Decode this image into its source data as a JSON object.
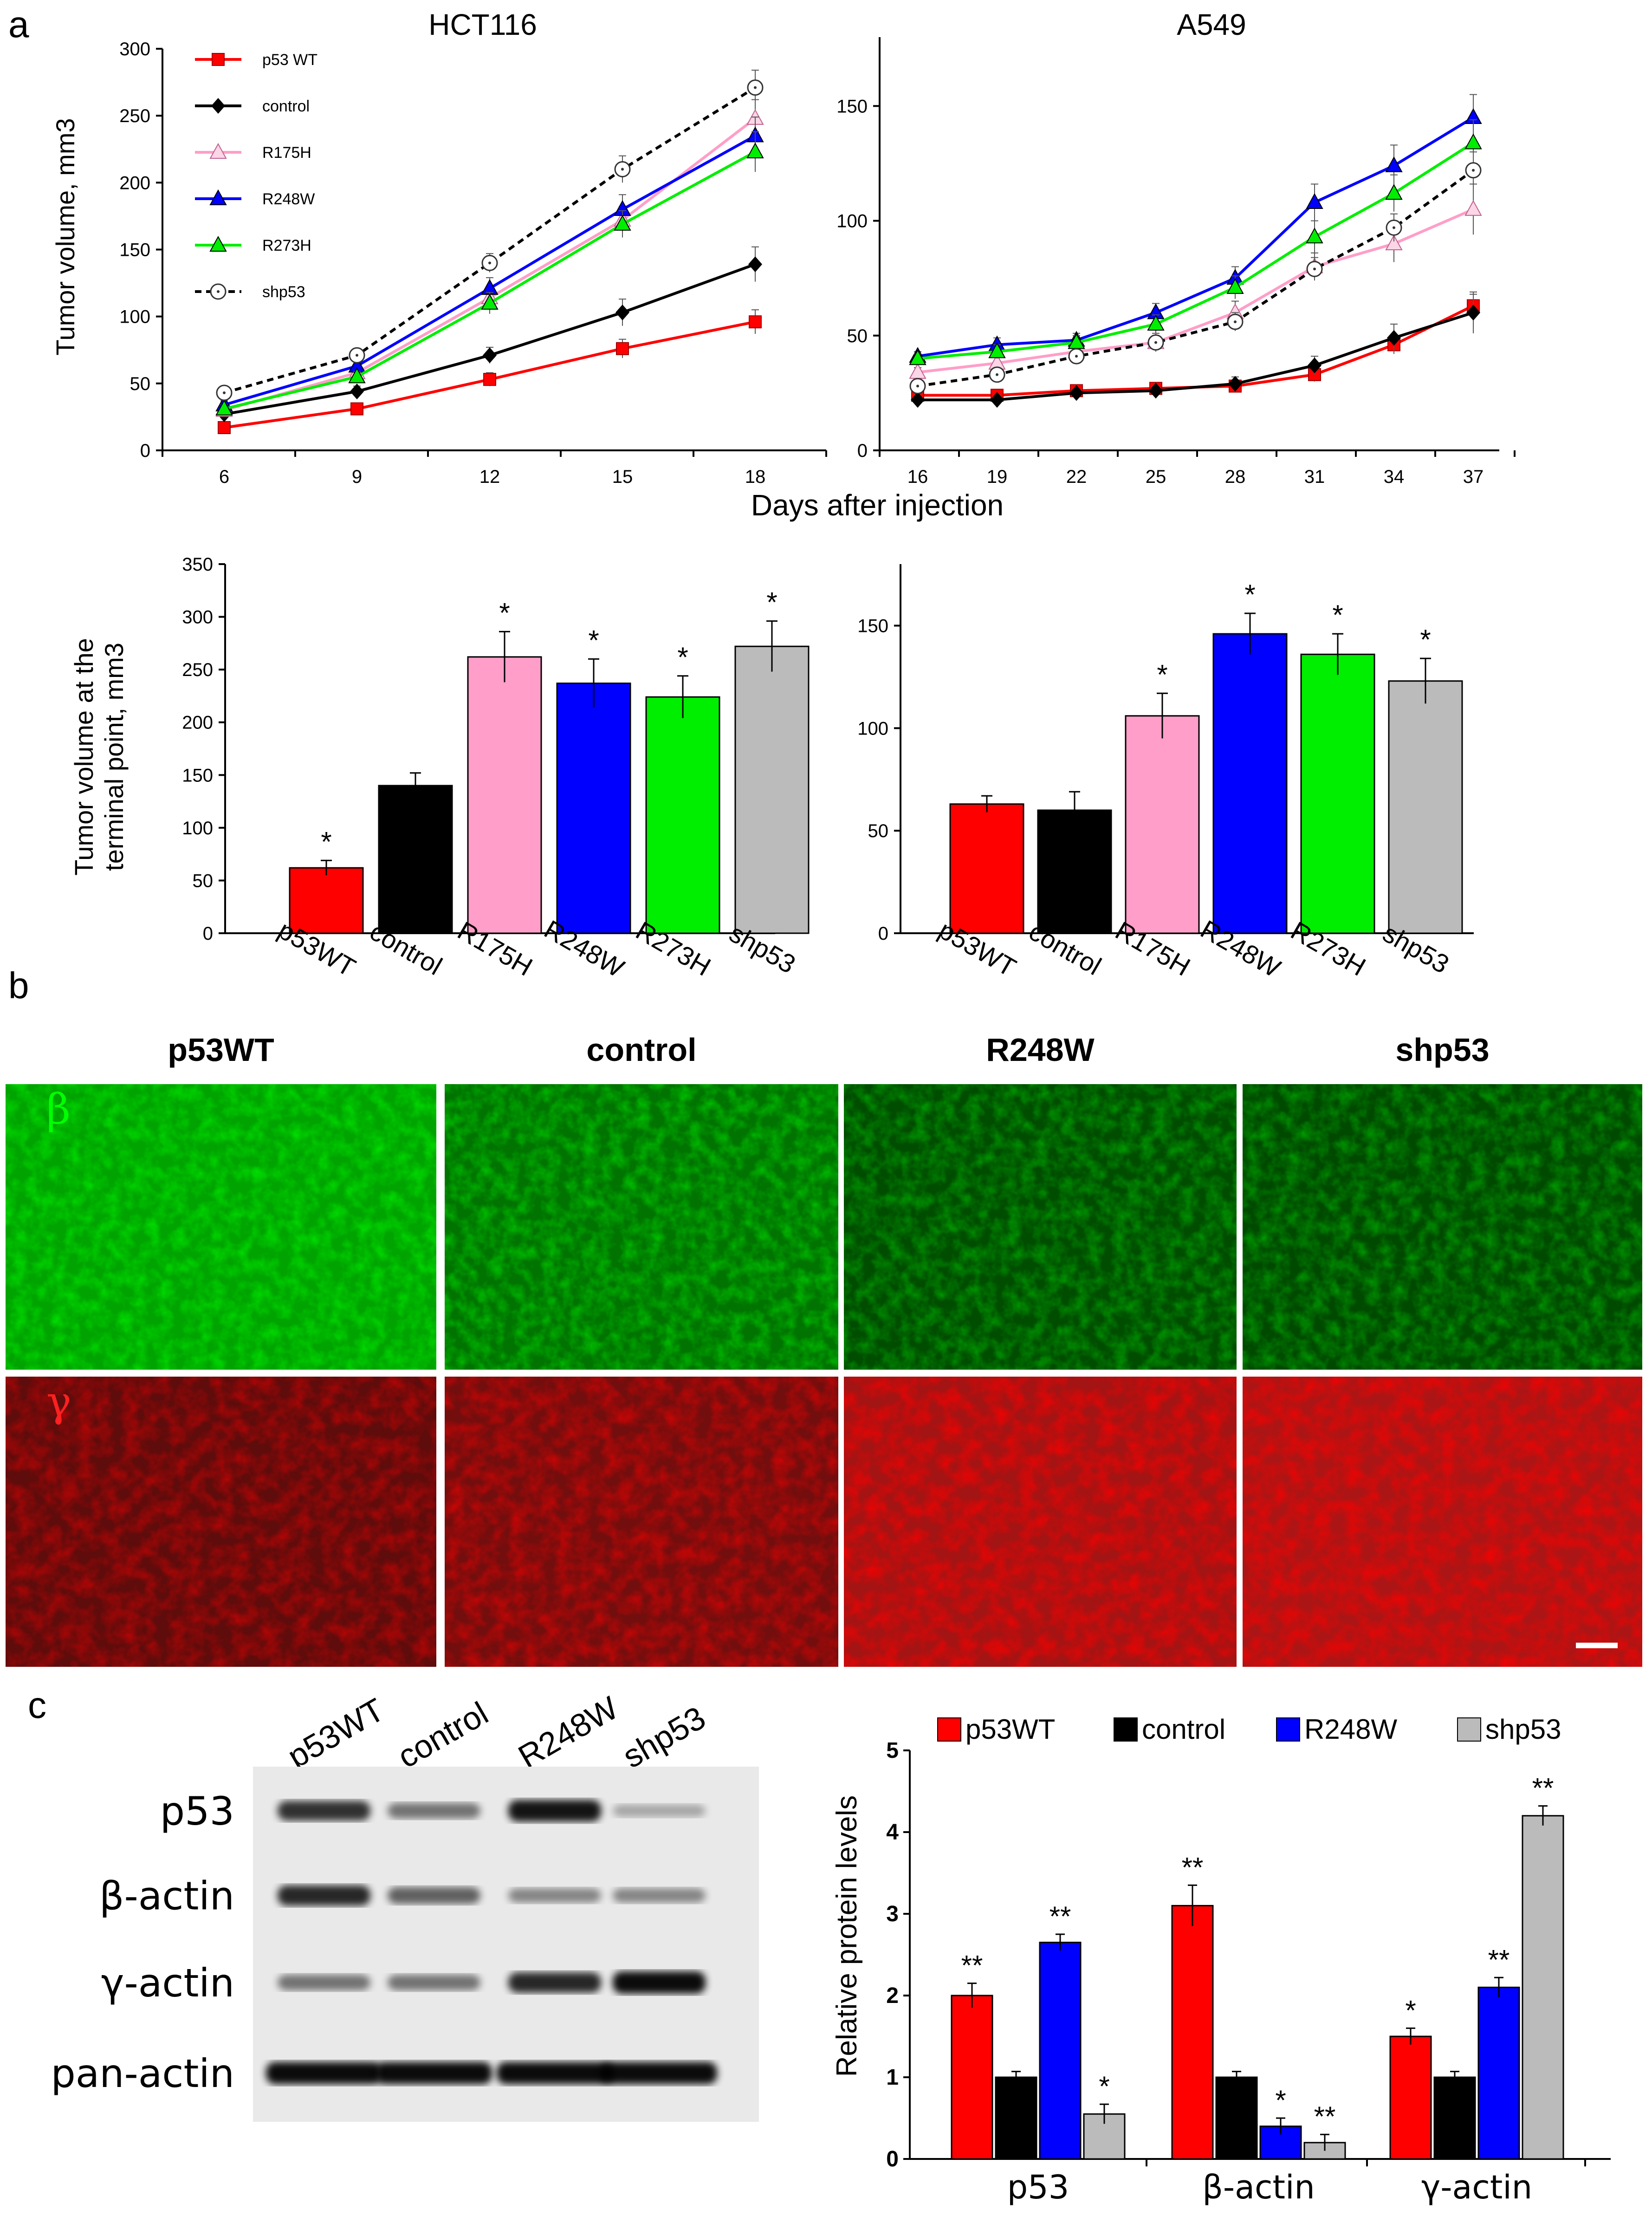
{
  "figure": {
    "panel_labels": [
      "a",
      "b",
      "c"
    ],
    "x_axis_shared_label": "Days after injection",
    "bar_ylabel_lines": [
      "Tumor volume at the",
      "terminal point, mm3"
    ],
    "if_channels": [
      "β",
      "γ"
    ],
    "if_columns": [
      "p53WT",
      "control",
      "R248W",
      "shp53"
    ],
    "blot_columns": [
      "p53WT",
      "control",
      "R248W",
      "shp53"
    ],
    "blot_rows": [
      "p53",
      "β-actin",
      "γ-actin",
      "pan-actin"
    ],
    "blot_intensities": [
      [
        0.8,
        0.45,
        0.95,
        0.18
      ],
      [
        0.85,
        0.55,
        0.35,
        0.35
      ],
      [
        0.45,
        0.45,
        0.85,
        1.0
      ],
      [
        1.0,
        1.0,
        1.0,
        1.0
      ]
    ],
    "if_intensity": {
      "green": [
        0.95,
        0.6,
        0.32,
        0.3
      ],
      "red": [
        0.45,
        0.6,
        0.95,
        1.0
      ]
    }
  },
  "colors": {
    "p53WT": "#ff0000",
    "control": "#000000",
    "R175H": "#ff9ec8",
    "R248W": "#0000ff",
    "R273H": "#00ee00",
    "shp53": "#bbbbbb"
  },
  "chart_data": [
    {
      "id": "line-hct116",
      "type": "line",
      "title": "HCT116",
      "ylabel": "Tumor volume, mm3",
      "xlabel": "Days after injection",
      "x": [
        6,
        9,
        12,
        15,
        18
      ],
      "ylim": [
        0,
        300
      ],
      "yticks": [
        0,
        50,
        100,
        150,
        200,
        250,
        300
      ],
      "series": [
        {
          "name": "p53 WT",
          "key": "p53WT",
          "marker": "square",
          "values": [
            17,
            31,
            53,
            76,
            96
          ],
          "err": [
            3,
            3,
            5,
            7,
            9
          ]
        },
        {
          "name": "control",
          "key": "control",
          "marker": "diamond",
          "values": [
            27,
            44,
            71,
            103,
            139
          ],
          "err": [
            3,
            4,
            6,
            10,
            13
          ]
        },
        {
          "name": "R175H",
          "key": "R175H",
          "marker": "triangle-open",
          "values": [
            30,
            58,
            114,
            172,
            248
          ],
          "err": [
            3,
            4,
            8,
            10,
            14
          ]
        },
        {
          "name": "R248W",
          "key": "R248W",
          "marker": "triangle",
          "values": [
            34,
            63,
            121,
            180,
            235
          ],
          "err": [
            3,
            4,
            8,
            11,
            14
          ]
        },
        {
          "name": "R273H",
          "key": "R273H",
          "marker": "triangle",
          "values": [
            31,
            55,
            110,
            169,
            223
          ],
          "err": [
            3,
            4,
            8,
            10,
            15
          ]
        },
        {
          "name": "shp53",
          "key": "shp53",
          "marker": "circle-dot",
          "dashed": true,
          "values": [
            43,
            71,
            140,
            210,
            271
          ],
          "err": [
            3,
            5,
            7,
            10,
            13
          ]
        }
      ]
    },
    {
      "id": "line-a549",
      "type": "line",
      "title": "A549",
      "x": [
        16,
        19,
        22,
        25,
        28,
        31,
        34,
        37
      ],
      "ylim": [
        0,
        180
      ],
      "yticks": [
        0,
        50,
        100,
        150
      ],
      "series": [
        {
          "name": "p53 WT",
          "key": "p53WT",
          "marker": "square",
          "values": [
            24,
            24,
            26,
            27,
            28,
            33,
            46,
            63
          ],
          "err": [
            2,
            2,
            2,
            2,
            2,
            3,
            4,
            5
          ]
        },
        {
          "name": "control",
          "key": "control",
          "marker": "diamond",
          "values": [
            22,
            22,
            25,
            26,
            29,
            37,
            49,
            60
          ],
          "err": [
            2,
            2,
            2,
            2,
            3,
            4,
            6,
            9
          ]
        },
        {
          "name": "R175H",
          "key": "R175H",
          "marker": "triangle-open",
          "values": [
            34,
            38,
            43,
            47,
            60,
            80,
            90,
            105
          ],
          "err": [
            2,
            3,
            3,
            4,
            5,
            6,
            8,
            11
          ]
        },
        {
          "name": "R248W",
          "key": "R248W",
          "marker": "triangle",
          "values": [
            41,
            46,
            48,
            60,
            75,
            108,
            124,
            145
          ],
          "err": [
            2,
            3,
            3,
            4,
            5,
            8,
            9,
            10
          ]
        },
        {
          "name": "R273H",
          "key": "R273H",
          "marker": "triangle",
          "values": [
            40,
            43,
            47,
            55,
            71,
            93,
            112,
            134
          ],
          "err": [
            2,
            3,
            3,
            4,
            5,
            7,
            8,
            10
          ]
        },
        {
          "name": "shp53",
          "key": "shp53",
          "marker": "circle-dot",
          "dashed": true,
          "values": [
            28,
            33,
            41,
            47,
            56,
            79,
            97,
            122
          ],
          "err": [
            2,
            2,
            3,
            3,
            4,
            5,
            6,
            8
          ]
        }
      ]
    },
    {
      "id": "bar-hct116",
      "type": "bar",
      "categories": [
        "p53WT",
        "control",
        "R175H",
        "R248W",
        "R273H",
        "shp53"
      ],
      "values": [
        62,
        140,
        262,
        237,
        224,
        272
      ],
      "err": [
        7,
        12,
        24,
        23,
        20,
        24
      ],
      "significance": [
        "*",
        "",
        "*",
        "*",
        "*",
        "*"
      ],
      "ylim": [
        0,
        350
      ],
      "yticks": [
        0,
        50,
        100,
        150,
        200,
        250,
        300,
        350
      ],
      "ylabel": "Tumor volume at the terminal point, mm3"
    },
    {
      "id": "bar-a549",
      "type": "bar",
      "categories": [
        "p53WT",
        "control",
        "R175H",
        "R248W",
        "R273H",
        "shp53"
      ],
      "values": [
        63,
        60,
        106,
        146,
        136,
        123
      ],
      "err": [
        4,
        9,
        11,
        10,
        10,
        11
      ],
      "significance": [
        "",
        "",
        "*",
        "*",
        "*",
        "*"
      ],
      "ylim": [
        0,
        180
      ],
      "yticks": [
        0,
        50,
        100,
        150
      ]
    },
    {
      "id": "bar-protein",
      "type": "bar",
      "ylabel": "Relative protein levels",
      "groups": [
        "p53",
        "β-actin",
        "γ-actin"
      ],
      "ylim": [
        0,
        5
      ],
      "yticks": [
        0,
        1,
        2,
        3,
        4,
        5
      ],
      "series": [
        {
          "name": "p53WT",
          "key": "p53WT",
          "values": [
            2.0,
            3.1,
            1.5
          ],
          "err": [
            0.15,
            0.25,
            0.1
          ],
          "significance": [
            "**",
            "**",
            "*"
          ]
        },
        {
          "name": "control",
          "key": "control",
          "values": [
            1.0,
            1.0,
            1.0
          ],
          "err": [
            0.07,
            0.07,
            0.07
          ],
          "significance": [
            "",
            "",
            ""
          ]
        },
        {
          "name": "R248W",
          "key": "R248W",
          "values": [
            2.65,
            0.4,
            2.1
          ],
          "err": [
            0.1,
            0.1,
            0.12
          ],
          "significance": [
            "**",
            "*",
            "**"
          ]
        },
        {
          "name": "shp53",
          "key": "shp53",
          "values": [
            0.55,
            0.2,
            4.2
          ],
          "err": [
            0.12,
            0.1,
            0.12
          ],
          "significance": [
            "*",
            "**",
            "**"
          ]
        }
      ]
    }
  ]
}
